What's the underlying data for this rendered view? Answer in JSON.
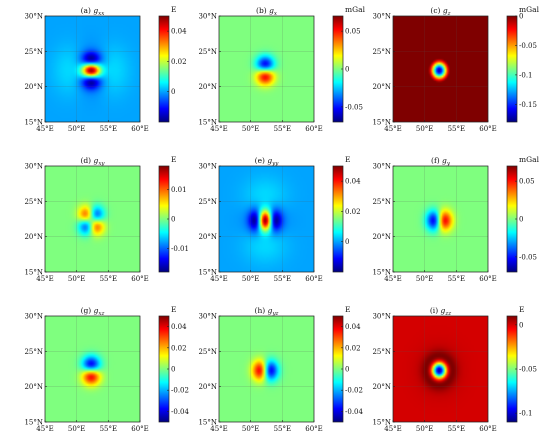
{
  "chart_data": [
    {
      "id": "gxx",
      "type": "heatmap",
      "title": "(a) g_xx",
      "title_main": "(a) g",
      "title_sub": "xx",
      "unit": "E",
      "x_ticks": [
        "45°E",
        "50°E",
        "55°E",
        "60°E"
      ],
      "y_ticks": [
        "30°N",
        "25°N",
        "20°N",
        "15°N"
      ],
      "xlim": [
        45,
        60
      ],
      "ylim": [
        15,
        30
      ],
      "zlim": [
        -0.02,
        0.05
      ],
      "colorbar_ticks": [
        0.04,
        0.02,
        0
      ],
      "colorbar_tick_labels": [
        "0.04",
        "0.02",
        "0"
      ],
      "pattern": "gxx",
      "peak": 0.05,
      "background": 0
    },
    {
      "id": "gx",
      "type": "heatmap",
      "title": "(b) g_x",
      "title_main": "(b) g",
      "title_sub": "x",
      "unit": "mGal",
      "x_ticks": [
        "45°E",
        "50°E",
        "55°E",
        "60°E"
      ],
      "y_ticks": [
        "30°N",
        "25°N",
        "20°N",
        "15°N"
      ],
      "xlim": [
        45,
        60
      ],
      "ylim": [
        15,
        30
      ],
      "zlim": [
        -0.07,
        0.07
      ],
      "colorbar_ticks": [
        0.05,
        0,
        -0.05
      ],
      "colorbar_tick_labels": [
        "0.05",
        "0",
        "-0.05"
      ],
      "pattern": "gx",
      "peak": 0.07,
      "background": 0
    },
    {
      "id": "gz",
      "type": "heatmap",
      "title": "(c) g_z",
      "title_main": "(c) g",
      "title_sub": "z",
      "unit": "mGal",
      "x_ticks": [
        "45°E",
        "50°E",
        "55°E",
        "60°E"
      ],
      "y_ticks": [
        "30°N",
        "25°N",
        "20°N",
        "15°N"
      ],
      "xlim": [
        45,
        60
      ],
      "ylim": [
        15,
        30
      ],
      "zlim": [
        -0.18,
        0.0
      ],
      "colorbar_ticks": [
        0,
        -0.05,
        -0.1,
        -0.15
      ],
      "colorbar_tick_labels": [
        "0",
        "-0.05",
        "-0.1",
        "-0.15"
      ],
      "pattern": "gz",
      "peak": -0.18,
      "background": 0
    },
    {
      "id": "gxy",
      "type": "heatmap",
      "title": "(d) g_xy",
      "title_main": "(d) g",
      "title_sub": "xy",
      "unit": "E",
      "x_ticks": [
        "45°E",
        "50°E",
        "55°E",
        "60°E"
      ],
      "y_ticks": [
        "30°N",
        "25°N",
        "20°N",
        "15°N"
      ],
      "xlim": [
        45,
        60
      ],
      "ylim": [
        15,
        30
      ],
      "zlim": [
        -0.018,
        0.018
      ],
      "colorbar_ticks": [
        0.01,
        0,
        -0.01
      ],
      "colorbar_tick_labels": [
        "0.01",
        "0",
        "-0.01"
      ],
      "pattern": "gxy",
      "peak": 0.018,
      "background": 0
    },
    {
      "id": "gyy",
      "type": "heatmap",
      "title": "(e) g_yy",
      "title_main": "(e) g",
      "title_sub": "yy",
      "unit": "E",
      "x_ticks": [
        "45°E",
        "50°E",
        "55°E",
        "60°E"
      ],
      "y_ticks": [
        "30°N",
        "25°N",
        "20°N",
        "15°N"
      ],
      "xlim": [
        45,
        60
      ],
      "ylim": [
        15,
        30
      ],
      "zlim": [
        -0.02,
        0.05
      ],
      "colorbar_ticks": [
        0.04,
        0.02,
        0
      ],
      "colorbar_tick_labels": [
        "0.04",
        "0.02",
        "0"
      ],
      "pattern": "gyy",
      "peak": 0.05,
      "background": 0
    },
    {
      "id": "gy",
      "type": "heatmap",
      "title": "(f) g_y",
      "title_main": "(f) g",
      "title_sub": "y",
      "unit": "mGal",
      "x_ticks": [
        "45°E",
        "50°E",
        "55°E",
        "60°E"
      ],
      "y_ticks": [
        "30°N",
        "25°N",
        "20°N",
        "15°N"
      ],
      "xlim": [
        45,
        60
      ],
      "ylim": [
        15,
        30
      ],
      "zlim": [
        -0.07,
        0.07
      ],
      "colorbar_ticks": [
        0.05,
        0,
        -0.05
      ],
      "colorbar_tick_labels": [
        "0.05",
        "0",
        "-0.05"
      ],
      "pattern": "gy",
      "peak": 0.07,
      "background": 0
    },
    {
      "id": "gxz",
      "type": "heatmap",
      "title": "(g) g_xz",
      "title_main": "(g) g",
      "title_sub": "xz",
      "unit": "E",
      "x_ticks": [
        "45°E",
        "50°E",
        "55°E",
        "60°E"
      ],
      "y_ticks": [
        "30°N",
        "25°N",
        "20°N",
        "15°N"
      ],
      "xlim": [
        45,
        60
      ],
      "ylim": [
        15,
        30
      ],
      "zlim": [
        -0.05,
        0.05
      ],
      "colorbar_ticks": [
        0.04,
        0.02,
        0,
        -0.02,
        -0.04
      ],
      "colorbar_tick_labels": [
        "0.04",
        "0.02",
        "0",
        "-0.02",
        "-0.04"
      ],
      "pattern": "gxz",
      "peak": 0.05,
      "background": 0
    },
    {
      "id": "gyz",
      "type": "heatmap",
      "title": "(h) g_yz",
      "title_main": "(h) g",
      "title_sub": "yz",
      "unit": "E",
      "x_ticks": [
        "45°E",
        "50°E",
        "55°E",
        "60°E"
      ],
      "y_ticks": [
        "30°N",
        "25°N",
        "20°N",
        "15°N"
      ],
      "xlim": [
        45,
        60
      ],
      "ylim": [
        15,
        30
      ],
      "zlim": [
        -0.05,
        0.05
      ],
      "colorbar_ticks": [
        0.04,
        0.02,
        0,
        -0.02,
        -0.04
      ],
      "colorbar_tick_labels": [
        "0.04",
        "0.02",
        "0",
        "-0.02",
        "-0.04"
      ],
      "pattern": "gyz",
      "peak": 0.05,
      "background": 0
    },
    {
      "id": "gzz",
      "type": "heatmap",
      "title": "(i) g_zz",
      "title_main": "(i) g",
      "title_sub": "zz",
      "unit": "E",
      "x_ticks": [
        "45°E",
        "50°E",
        "55°E",
        "60°E"
      ],
      "y_ticks": [
        "30°N",
        "25°N",
        "20°N",
        "15°N"
      ],
      "xlim": [
        45,
        60
      ],
      "ylim": [
        15,
        30
      ],
      "zlim": [
        -0.11,
        0.01
      ],
      "colorbar_ticks": [
        0,
        -0.05,
        -0.1
      ],
      "colorbar_tick_labels": [
        "0",
        "-0.05",
        "-0.1"
      ],
      "pattern": "gzz",
      "peak": -0.11,
      "background": 0
    }
  ],
  "colormap": [
    "#00007f",
    "#0000ff",
    "#007fff",
    "#00ffff",
    "#7fff7f",
    "#ffff00",
    "#ff7f00",
    "#ff0000",
    "#7f0000"
  ]
}
